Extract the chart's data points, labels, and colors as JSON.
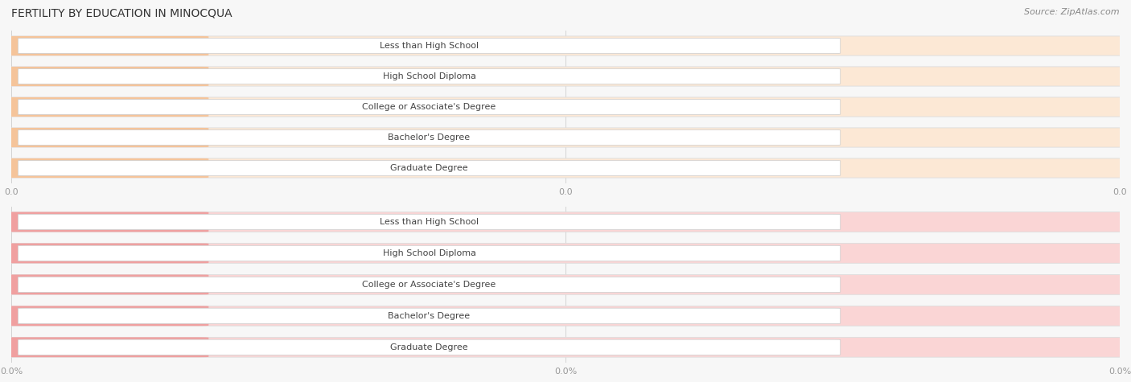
{
  "title": "FERTILITY BY EDUCATION IN MINOCQUA",
  "source": "Source: ZipAtlas.com",
  "categories": [
    "Less than High School",
    "High School Diploma",
    "College or Associate's Degree",
    "Bachelor's Degree",
    "Graduate Degree"
  ],
  "values_top": [
    0.0,
    0.0,
    0.0,
    0.0,
    0.0
  ],
  "values_bottom": [
    0.0,
    0.0,
    0.0,
    0.0,
    0.0
  ],
  "bar_color_top": "#f5c49a",
  "bar_color_bottom": "#f0a0a0",
  "bar_bg_color_top": "#fce8d5",
  "bar_bg_color_bottom": "#fad5d5",
  "bg_color": "#f7f7f7",
  "text_color_dark": "#444444",
  "tick_label_top": [
    "0.0",
    "0.0",
    "0.0"
  ],
  "tick_label_bottom": [
    "0.0%",
    "0.0%",
    "0.0%"
  ],
  "title_fontsize": 10,
  "source_fontsize": 8,
  "bar_label_fontsize": 8,
  "category_fontsize": 8
}
